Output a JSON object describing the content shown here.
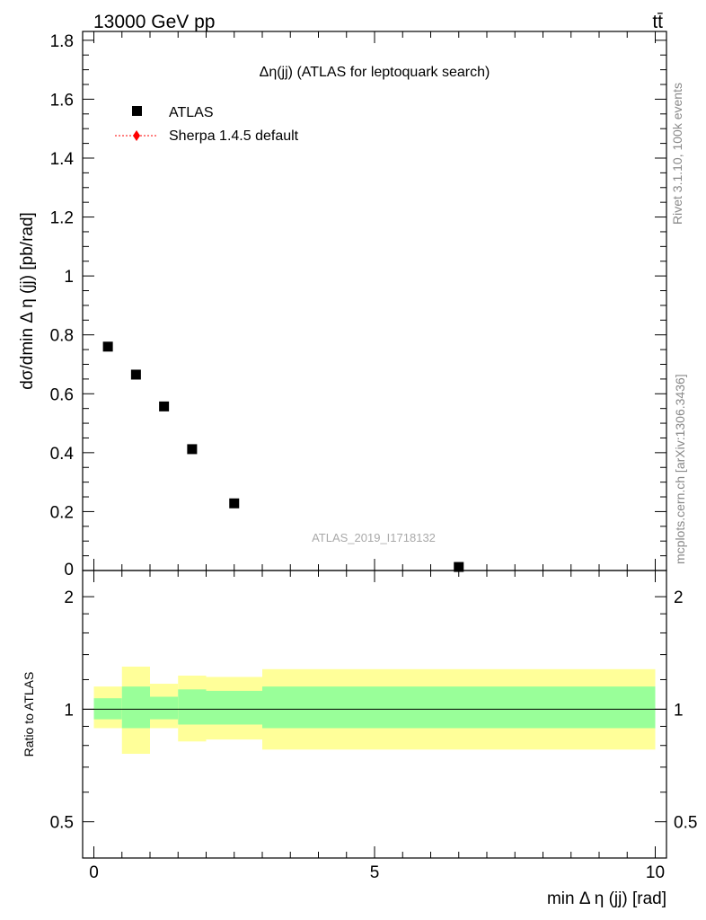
{
  "header": {
    "left": "13000 GeV pp",
    "right": "tt̄"
  },
  "side_labels": {
    "rivet": "Rivet 3.1.10,  100k events",
    "mcplots": "mcplots.cern.ch [arXiv:1306.3436]"
  },
  "watermark": "ATLAS_2019_I1718132",
  "colors": {
    "data_marker": "#000000",
    "mc_line": "#ff0000",
    "band_outer": "#ffff99",
    "band_inner": "#99ff99"
  },
  "chart_data": [
    {
      "type": "scatter",
      "panel": "main",
      "title": "Δη(jj) (ATLAS for leptoquark search)",
      "ylabel": "dσ/dmin Δ η (jj) [pb/rad]",
      "xlim": [
        -0.2,
        10.2
      ],
      "ylim": [
        0,
        1.83
      ],
      "yticks": [
        0.2,
        0.4,
        0.6,
        0.8,
        1,
        1.2,
        1.4,
        1.6,
        1.8
      ],
      "ytick_labels": [
        "0.2",
        "0.4",
        "0.6",
        "0.8",
        "1",
        "1.2",
        "1.4",
        "1.6",
        "1.8"
      ],
      "ytick_bottom_label": "0",
      "legend_position": "top-left",
      "series": [
        {
          "name": "ATLAS",
          "marker": "square",
          "x": [
            0.25,
            0.75,
            1.25,
            1.75,
            2.5,
            6.5
          ],
          "y": [
            0.76,
            0.665,
            0.557,
            0.412,
            0.228,
            0.012
          ]
        },
        {
          "name": "Sherpa 1.4.5 default",
          "marker": "diamond",
          "line": "dotted",
          "x": [],
          "y": []
        }
      ]
    },
    {
      "type": "area",
      "panel": "ratio",
      "ylabel": "Ratio to ATLAS",
      "xlabel": "min Δ η (jj) [rad]",
      "xlim": [
        -0.2,
        10.2
      ],
      "ylim": [
        0.4,
        2.35
      ],
      "log_y": true,
      "xticks": [
        0,
        5,
        10
      ],
      "xtick_labels": [
        "0",
        "5",
        "10"
      ],
      "yticks": [
        0.5,
        1,
        2
      ],
      "ytick_labels": [
        "0.5",
        "1",
        "2"
      ],
      "reference_line": 1,
      "bins": [
        {
          "x0": 0.0,
          "x1": 0.5,
          "outer": [
            0.89,
            1.15
          ],
          "inner": [
            0.94,
            1.07
          ]
        },
        {
          "x0": 0.5,
          "x1": 1.0,
          "outer": [
            0.76,
            1.3
          ],
          "inner": [
            0.89,
            1.15
          ]
        },
        {
          "x0": 1.0,
          "x1": 1.5,
          "outer": [
            0.89,
            1.17
          ],
          "inner": [
            0.94,
            1.08
          ]
        },
        {
          "x0": 1.5,
          "x1": 2.0,
          "outer": [
            0.82,
            1.23
          ],
          "inner": [
            0.91,
            1.13
          ]
        },
        {
          "x0": 2.0,
          "x1": 3.0,
          "outer": [
            0.83,
            1.22
          ],
          "inner": [
            0.91,
            1.12
          ]
        },
        {
          "x0": 3.0,
          "x1": 10.0,
          "outer": [
            0.78,
            1.28
          ],
          "inner": [
            0.89,
            1.15
          ]
        }
      ]
    }
  ]
}
